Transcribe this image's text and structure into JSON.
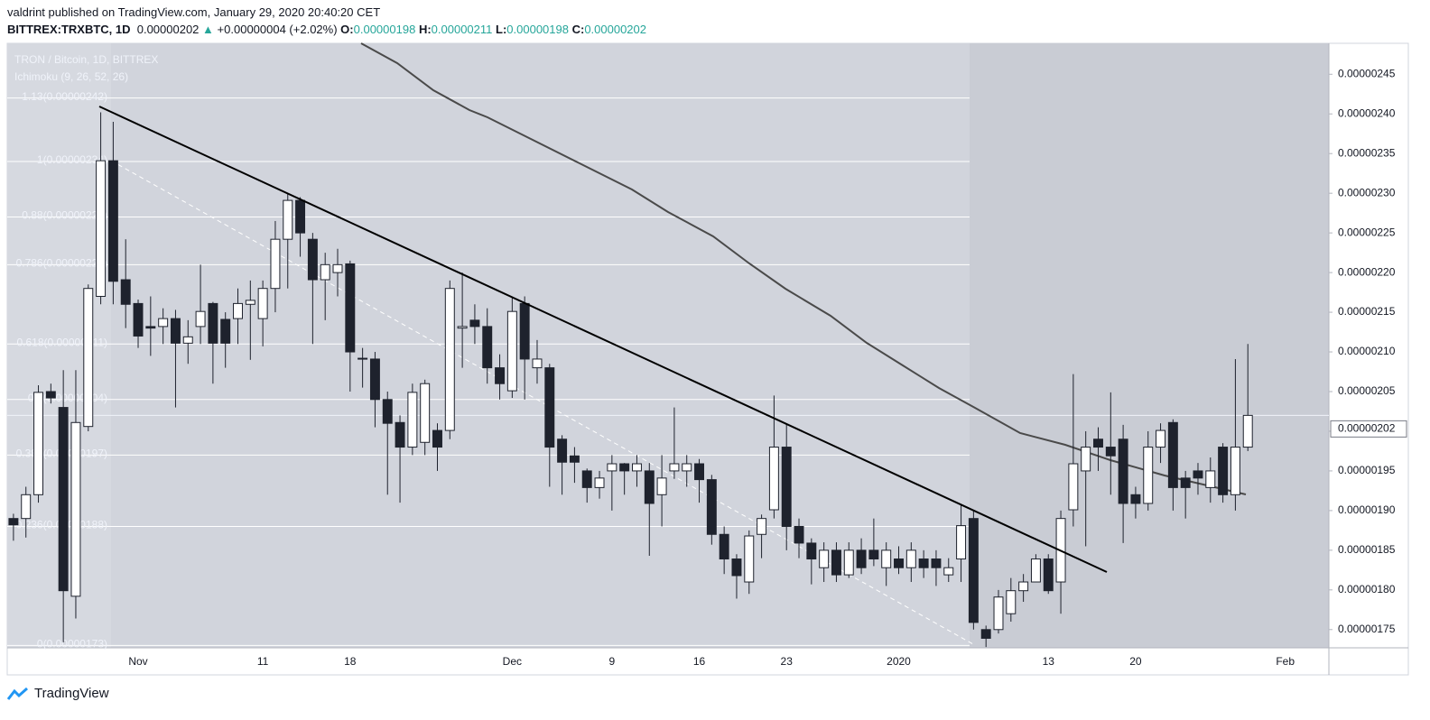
{
  "header": {
    "publisher": "valdrint published on TradingView.com, January 29, 2020 20:40:20 CET",
    "symbol": "BITTREX:TRXBTC, 1D",
    "last": "0.00000202",
    "change_arrow": "▲",
    "change": "+0.00000004 (+2.02%)",
    "ohlc": [
      {
        "label": "O:",
        "value": "0.00000198"
      },
      {
        "label": "H:",
        "value": "0.00000211"
      },
      {
        "label": "L:",
        "value": "0.00000198"
      },
      {
        "label": "C:",
        "value": "0.00000202"
      }
    ]
  },
  "chart_data": {
    "type": "candlestick",
    "legend": [
      "TRON / Bitcoin, 1D, BITTREX",
      "Ichimoku (9, 26, 52, 26)"
    ],
    "categories": [
      null,
      null,
      null,
      null,
      null,
      null,
      null,
      null,
      null,
      null,
      "Nov",
      null,
      null,
      null,
      null,
      null,
      null,
      null,
      null,
      null,
      "11",
      null,
      null,
      null,
      null,
      null,
      null,
      "18",
      null,
      null,
      null,
      null,
      null,
      null,
      null,
      null,
      null,
      null,
      null,
      null,
      "Dec",
      null,
      null,
      null,
      null,
      null,
      null,
      null,
      "9",
      null,
      null,
      null,
      null,
      null,
      null,
      "16",
      null,
      null,
      null,
      null,
      null,
      null,
      "23",
      null,
      null,
      null,
      null,
      null,
      null,
      null,
      null,
      "2020",
      null,
      null,
      null,
      null,
      null,
      null,
      null,
      null,
      null,
      null,
      null,
      "13",
      null,
      null,
      null,
      null,
      null,
      null,
      "20",
      null,
      null,
      null,
      null,
      null,
      null,
      null,
      null,
      null,
      null,
      null,
      "Feb",
      null,
      null,
      null
    ],
    "open": [
      1.89e-06,
      1.89e-06,
      1.92e-06,
      2.05e-06,
      2.03e-06,
      1.792e-06,
      2.006e-06,
      2.17e-06,
      2.341e-06,
      2.191e-06,
      2.161e-06,
      2.132e-06,
      2.132e-06,
      2.142e-06,
      2.111e-06,
      2.132e-06,
      2.161e-06,
      2.141e-06,
      2.142e-06,
      2.16e-06,
      2.142e-06,
      2.18e-06,
      2.242e-06,
      2.291e-06,
      2.242e-06,
      2.191e-06,
      2.2e-06,
      2.211e-06,
      2.092e-06,
      2.091e-06,
      2.04e-06,
      2.011e-06,
      1.98e-06,
      1.986e-06,
      2.001e-06,
      2.001e-06,
      2.13e-06,
      2.14e-06,
      2.132e-06,
      2.08e-06,
      2.051e-06,
      2.161e-06,
      2.08e-06,
      2.08e-06,
      1.99e-06,
      1.969e-06,
      1.95e-06,
      1.929e-06,
      1.95e-06,
      1.959e-06,
      1.95e-06,
      1.95e-06,
      1.92e-06,
      1.95e-06,
      1.95e-06,
      1.959e-06,
      1.939e-06,
      1.87e-06,
      1.839e-06,
      1.81e-06,
      1.87e-06,
      1.901e-06,
      1.98e-06,
      1.88e-06,
      1.859e-06,
      1.828e-06,
      1.85e-06,
      1.819e-06,
      1.85e-06,
      1.85e-06,
      1.828e-06,
      1.839e-06,
      1.828e-06,
      1.839e-06,
      1.839e-06,
      1.819e-06,
      1.839e-06,
      1.89e-06,
      1.75e-06,
      1.75e-06,
      1.77e-06,
      1.799e-06,
      1.81e-06,
      1.839e-06,
      1.81e-06,
      1.901e-06,
      1.95e-06,
      1.99e-06,
      1.98e-06,
      1.99e-06,
      1.92e-06,
      1.909e-06,
      1.98e-06,
      2.011e-06,
      1.941e-06,
      1.95e-06,
      1.929e-06,
      1.98e-06,
      1.92e-06,
      1.98e-06,
      null,
      null,
      null,
      null,
      null,
      null
    ],
    "high": [
      1.896e-06,
      1.93e-06,
      2.058e-06,
      2.06e-06,
      2.077e-06,
      2.077e-06,
      2.185e-06,
      2.402e-06,
      2.39e-06,
      2.242e-06,
      2.166e-06,
      2.17e-06,
      2.155e-06,
      2.153e-06,
      2.14e-06,
      2.21e-06,
      2.163e-06,
      2.15e-06,
      2.18e-06,
      2.19e-06,
      2.19e-06,
      2.265e-06,
      2.3e-06,
      2.295e-06,
      2.25e-06,
      2.225e-06,
      2.23e-06,
      2.215e-06,
      2.105e-06,
      2.1e-06,
      2.05e-06,
      2.02e-06,
      2.06e-06,
      2.065e-06,
      2.01e-06,
      2.19e-06,
      2.2e-06,
      2.16e-06,
      2.155e-06,
      2.097e-06,
      2.17e-06,
      2.17e-06,
      2.115e-06,
      2.085e-06,
      1.995e-06,
      1.98e-06,
      1.953e-06,
      1.95e-06,
      1.97e-06,
      1.96e-06,
      1.97e-06,
      1.96e-06,
      1.97e-06,
      2.03e-06,
      1.97e-06,
      1.965e-06,
      1.945e-06,
      1.88e-06,
      1.845e-06,
      1.875e-06,
      1.895e-06,
      2.045e-06,
      2.01e-06,
      1.89e-06,
      1.865e-06,
      1.86e-06,
      1.86e-06,
      1.86e-06,
      1.865e-06,
      1.89e-06,
      1.86e-06,
      1.855e-06,
      1.86e-06,
      1.85e-06,
      1.85e-06,
      1.84e-06,
      1.907e-06,
      1.9e-06,
      1.755e-06,
      1.8e-06,
      1.815e-06,
      1.82e-06,
      1.845e-06,
      1.845e-06,
      1.9e-06,
      2.072e-06,
      2e-06,
      2.005e-06,
      2.049e-06,
      2.008e-06,
      1.93e-06,
      2e-06,
      2.01e-06,
      2.015e-06,
      1.95e-06,
      1.96e-06,
      1.967e-06,
      1.985e-06,
      2.091e-06,
      2.11e-06,
      null,
      null,
      null,
      null,
      null,
      null
    ],
    "low": [
      1.862e-06,
      1.866e-06,
      1.91e-06,
      2.035e-06,
      1.734e-06,
      1.764e-06,
      2e-06,
      2.16e-06,
      2.16e-06,
      2.13e-06,
      2.105e-06,
      2.095e-06,
      2.11e-06,
      2.03e-06,
      2.085e-06,
      2.11e-06,
      2.06e-06,
      2.08e-06,
      2.11e-06,
      2.09e-06,
      2.107e-06,
      2.15e-06,
      2.18e-06,
      2.22e-06,
      2.11e-06,
      2.14e-06,
      2.17e-06,
      2.05e-06,
      2.055e-06,
      2.005e-06,
      1.92e-06,
      1.91e-06,
      1.97e-06,
      1.97e-06,
      1.95e-06,
      1.99e-06,
      2.08e-06,
      2.11e-06,
      2.06e-06,
      2.04e-06,
      2.042e-06,
      2.04e-06,
      2.06e-06,
      1.93e-06,
      1.92e-06,
      1.935e-06,
      1.91e-06,
      1.915e-06,
      1.9e-06,
      1.92e-06,
      1.93e-06,
      1.843e-06,
      1.88e-06,
      1.94e-06,
      1.93e-06,
      1.91e-06,
      1.857e-06,
      1.82e-06,
      1.789e-06,
      1.795e-06,
      1.84e-06,
      1.89e-06,
      1.85e-06,
      1.84e-06,
      1.807e-06,
      1.81e-06,
      1.81e-06,
      1.815e-06,
      1.82e-06,
      1.83e-06,
      1.805e-06,
      1.82e-06,
      1.81e-06,
      1.815e-06,
      1.805e-06,
      1.81e-06,
      1.81e-06,
      1.75e-06,
      1.728e-06,
      1.745e-06,
      1.76e-06,
      1.785e-06,
      1.81e-06,
      1.795e-06,
      1.77e-06,
      1.88e-06,
      1.855e-06,
      1.95e-06,
      1.92e-06,
      1.859e-06,
      1.89e-06,
      1.9e-06,
      1.96e-06,
      1.9e-06,
      1.89e-06,
      1.92e-06,
      1.91e-06,
      1.91e-06,
      1.9e-06,
      1.975e-06,
      null,
      null,
      null,
      null,
      null,
      null
    ],
    "close": [
      1.882e-06,
      1.92e-06,
      2.049e-06,
      2.042e-06,
      1.799e-06,
      2.011e-06,
      2.18e-06,
      2.341e-06,
      2.189e-06,
      2.16e-06,
      2.12e-06,
      2.13e-06,
      2.142e-06,
      2.111e-06,
      2.119e-06,
      2.151e-06,
      2.111e-06,
      2.111e-06,
      2.161e-06,
      2.165e-06,
      2.18e-06,
      2.242e-06,
      2.291e-06,
      2.25e-06,
      2.191e-06,
      2.21e-06,
      2.21e-06,
      2.1e-06,
      2.091e-06,
      2.04e-06,
      2.01e-06,
      1.98e-06,
      2.049e-06,
      2.06e-06,
      1.98e-06,
      2.18e-06,
      2.132e-06,
      2.132e-06,
      2.08e-06,
      2.06e-06,
      2.151e-06,
      2.091e-06,
      2.091e-06,
      1.98e-06,
      1.961e-06,
      1.961e-06,
      1.929e-06,
      1.941e-06,
      1.959e-06,
      1.95e-06,
      1.959e-06,
      1.909e-06,
      1.941e-06,
      1.959e-06,
      1.959e-06,
      1.939e-06,
      1.87e-06,
      1.839e-06,
      1.818e-06,
      1.868e-06,
      1.89e-06,
      1.98e-06,
      1.88e-06,
      1.859e-06,
      1.839e-06,
      1.85e-06,
      1.819e-06,
      1.85e-06,
      1.828e-06,
      1.839e-06,
      1.85e-06,
      1.828e-06,
      1.85e-06,
      1.828e-06,
      1.828e-06,
      1.828e-06,
      1.881e-06,
      1.759e-06,
      1.739e-06,
      1.791e-06,
      1.799e-06,
      1.81e-06,
      1.839e-06,
      1.799e-06,
      1.89e-06,
      1.959e-06,
      1.98e-06,
      1.98e-06,
      1.969e-06,
      1.909e-06,
      1.909e-06,
      1.98e-06,
      2.001e-06,
      1.929e-06,
      1.929e-06,
      1.941e-06,
      1.95e-06,
      1.92e-06,
      1.98e-06,
      2.02e-06,
      null,
      null,
      null,
      null,
      null,
      null
    ],
    "up_color": "#ffffff",
    "down_color": "#1e222d",
    "ylim": [
      1.727e-06,
      2.489e-06
    ],
    "yticks": [
      {
        "value": 2.45e-06,
        "label": "0.00000245"
      },
      {
        "value": 2.4e-06,
        "label": "0.00000240"
      },
      {
        "value": 2.35e-06,
        "label": "0.00000235"
      },
      {
        "value": 2.3e-06,
        "label": "0.00000230"
      },
      {
        "value": 2.25e-06,
        "label": "0.00000225"
      },
      {
        "value": 2.2e-06,
        "label": "0.00000220"
      },
      {
        "value": 2.15e-06,
        "label": "0.00000215"
      },
      {
        "value": 2.1e-06,
        "label": "0.00000210"
      },
      {
        "value": 2.05e-06,
        "label": "0.00000205"
      },
      {
        "value": 2e-06,
        "label": "0.00000200"
      },
      {
        "value": 1.95e-06,
        "label": "0.00000195"
      },
      {
        "value": 1.9e-06,
        "label": "0.00000190"
      },
      {
        "value": 1.85e-06,
        "label": "0.00000185"
      },
      {
        "value": 1.8e-06,
        "label": "0.00000180"
      },
      {
        "value": 1.75e-06,
        "label": "0.00000175"
      }
    ],
    "fib_levels": [
      {
        "value": 2.42e-06,
        "label": "1.13(0.00000242)"
      },
      {
        "value": 2.34e-06,
        "label": "1(0.00000234)"
      },
      {
        "value": 2.27e-06,
        "label": "0.88(0.00000227)"
      },
      {
        "value": 2.21e-06,
        "label": "0.786(0.00000221)"
      },
      {
        "value": 2.11e-06,
        "label": "0.618(0.00000211)"
      },
      {
        "value": 2.04e-06,
        "label": "0.5(0.00000204)"
      },
      {
        "value": 1.97e-06,
        "label": "0.382(0.00000197)"
      },
      {
        "value": 1.88e-06,
        "label": "0.236(0.00000188)"
      },
      {
        "value": 1.73e-06,
        "label": "0(0.00000173)"
      }
    ],
    "last_price": {
      "value": 2.02e-06,
      "label": "0.00000202"
    }
  },
  "footer": {
    "brand": "TradingView"
  }
}
